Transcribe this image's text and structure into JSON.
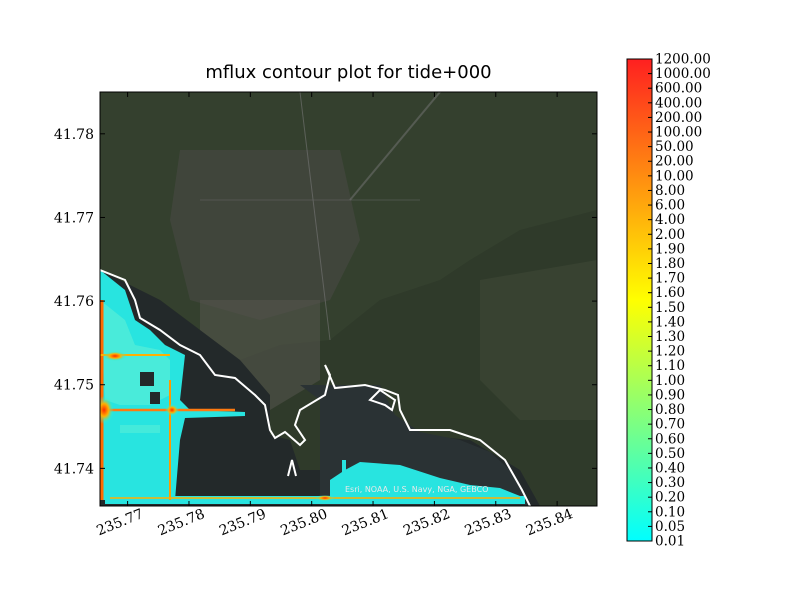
{
  "chart_data": {
    "type": "heatmap",
    "title": "mflux contour plot for tide+000",
    "xlabel": "",
    "ylabel": "",
    "xlim": [
      235.7655,
      235.8465
    ],
    "ylim": [
      41.7355,
      41.785
    ],
    "x_ticks": [
      "235.77",
      "235.78",
      "235.79",
      "235.80",
      "235.81",
      "235.82",
      "235.83",
      "235.84"
    ],
    "x_tick_values": [
      235.77,
      235.78,
      235.79,
      235.8,
      235.81,
      235.82,
      235.83,
      235.84
    ],
    "y_ticks": [
      "41.74",
      "41.75",
      "41.76",
      "41.77",
      "41.78"
    ],
    "y_tick_values": [
      41.74,
      41.75,
      41.76,
      41.77,
      41.78
    ],
    "colorbar": {
      "levels": [
        "0.01",
        "0.05",
        "0.10",
        "0.20",
        "0.30",
        "0.40",
        "0.50",
        "0.60",
        "0.70",
        "0.80",
        "0.90",
        "1.00",
        "1.10",
        "1.20",
        "1.30",
        "1.40",
        "1.50",
        "1.60",
        "1.70",
        "1.80",
        "1.90",
        "2.00",
        "4.00",
        "6.00",
        "8.00",
        "10.00",
        "20.00",
        "50.00",
        "100.00",
        "200.00",
        "400.00",
        "600.00",
        "1000.00",
        "1200.00"
      ]
    },
    "attribution": "Esri, NOAA, U.S. Navy, NGA, GEBCO",
    "colors": {
      "low": "#00ffff",
      "mid": "#ffff00",
      "high": "#ff0000",
      "background_land": "#2f3a2a",
      "background_water": "#23292a",
      "coastline": "#ffffff"
    }
  }
}
